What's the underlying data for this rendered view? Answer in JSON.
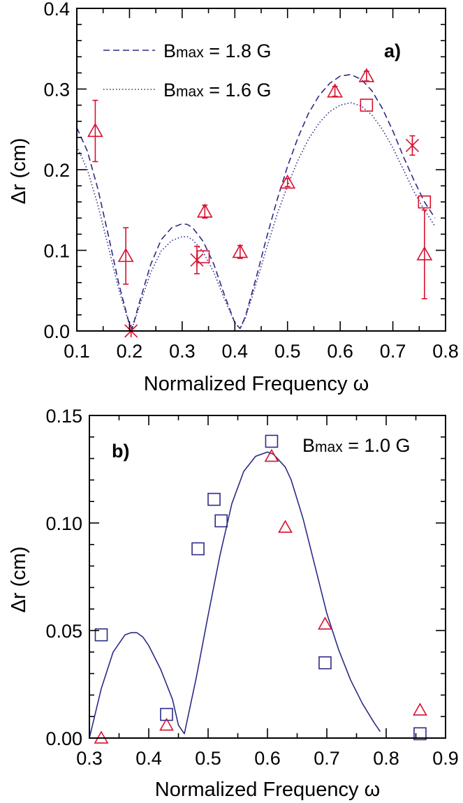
{
  "colors": {
    "model": "#2b2b86",
    "triangles": "#d8102f",
    "squares_a": "#d8102f",
    "squares_b": "#2b2b86",
    "axes": "#000000"
  },
  "chart_data": [
    {
      "type": "line",
      "panel_label": "a)",
      "xlabel": "Normalized Frequency ω",
      "ylabel": "Δr (cm)",
      "xlim": [
        0.1,
        0.8
      ],
      "ylim": [
        0.0,
        0.4
      ],
      "x_ticks": [
        0.1,
        0.2,
        0.3,
        0.4,
        0.5,
        0.6,
        0.7,
        0.8
      ],
      "x_tick_labels": [
        "0.1",
        "0.2",
        "0.3",
        "0.4",
        "0.5",
        "0.6",
        "0.7",
        "0.8"
      ],
      "y_ticks": [
        0.0,
        0.1,
        0.2,
        0.3,
        0.4
      ],
      "y_tick_labels": [
        "0.0",
        "0.1",
        "0.2",
        "0.3",
        "0.4"
      ],
      "legend_position": "top-left",
      "series": [
        {
          "name": "Bmax = 1.8 G",
          "name_main": "B",
          "name_sub": "max",
          "name_rest": " = 1.8 G",
          "style": "dashed",
          "x": [
            0.1,
            0.12,
            0.14,
            0.16,
            0.18,
            0.2,
            0.205,
            0.22,
            0.24,
            0.26,
            0.28,
            0.3,
            0.31,
            0.32,
            0.34,
            0.36,
            0.38,
            0.4,
            0.41,
            0.42,
            0.44,
            0.46,
            0.48,
            0.5,
            0.52,
            0.54,
            0.56,
            0.58,
            0.6,
            0.62,
            0.64,
            0.66,
            0.68,
            0.7,
            0.72,
            0.74,
            0.76,
            0.78
          ],
          "y": [
            0.252,
            0.223,
            0.176,
            0.118,
            0.058,
            0.008,
            0.003,
            0.038,
            0.082,
            0.113,
            0.128,
            0.133,
            0.132,
            0.128,
            0.111,
            0.083,
            0.045,
            0.01,
            0.003,
            0.018,
            0.065,
            0.115,
            0.162,
            0.204,
            0.24,
            0.27,
            0.292,
            0.307,
            0.316,
            0.318,
            0.312,
            0.298,
            0.276,
            0.248,
            0.216,
            0.187,
            0.16,
            0.14
          ]
        },
        {
          "name": "Bmax = 1.6 G",
          "name_main": "B",
          "name_sub": "max",
          "name_rest": " = 1.6 G",
          "style": "dotted",
          "x": [
            0.1,
            0.12,
            0.14,
            0.16,
            0.18,
            0.2,
            0.205,
            0.22,
            0.24,
            0.26,
            0.28,
            0.3,
            0.31,
            0.32,
            0.34,
            0.36,
            0.38,
            0.4,
            0.41,
            0.42,
            0.44,
            0.46,
            0.48,
            0.5,
            0.52,
            0.54,
            0.56,
            0.58,
            0.6,
            0.62,
            0.64,
            0.66,
            0.68,
            0.7,
            0.72,
            0.74,
            0.76,
            0.78
          ],
          "y": [
            0.229,
            0.2,
            0.156,
            0.104,
            0.051,
            0.008,
            0.003,
            0.033,
            0.072,
            0.099,
            0.112,
            0.117,
            0.117,
            0.113,
            0.098,
            0.073,
            0.04,
            0.01,
            0.003,
            0.016,
            0.058,
            0.102,
            0.144,
            0.18,
            0.212,
            0.238,
            0.258,
            0.272,
            0.28,
            0.283,
            0.279,
            0.268,
            0.25,
            0.227,
            0.2,
            0.173,
            0.15,
            0.13
          ]
        }
      ],
      "points": [
        {
          "marker": "triangle",
          "x": 0.135,
          "y": 0.248,
          "err": 0.038
        },
        {
          "marker": "triangle",
          "x": 0.193,
          "y": 0.093,
          "err": 0.035
        },
        {
          "marker": "triangle",
          "x": 0.343,
          "y": 0.148,
          "err": 0.008
        },
        {
          "marker": "triangle",
          "x": 0.41,
          "y": 0.098,
          "err": 0.008
        },
        {
          "marker": "triangle",
          "x": 0.5,
          "y": 0.184,
          "err": 0.005
        },
        {
          "marker": "triangle",
          "x": 0.59,
          "y": 0.297,
          "err": 0.006
        },
        {
          "marker": "triangle",
          "x": 0.65,
          "y": 0.316,
          "err": 0.006
        },
        {
          "marker": "triangle",
          "x": 0.76,
          "y": 0.095,
          "err": 0.055
        },
        {
          "marker": "square",
          "x": 0.34,
          "y": 0.092,
          "err": 0.0
        },
        {
          "marker": "square",
          "x": 0.65,
          "y": 0.28,
          "err": 0.0
        },
        {
          "marker": "square",
          "x": 0.76,
          "y": 0.16,
          "err": 0.0
        },
        {
          "marker": "cross",
          "x": 0.203,
          "y": 0.0,
          "err": 0.0
        },
        {
          "marker": "cross",
          "x": 0.328,
          "y": 0.088,
          "err": 0.017
        },
        {
          "marker": "cross",
          "x": 0.737,
          "y": 0.23,
          "err": 0.012
        }
      ]
    },
    {
      "type": "line",
      "panel_label": "b)",
      "xlabel": "Normalized Frequency ω",
      "ylabel": "Δr (cm)",
      "xlim": [
        0.3,
        0.9
      ],
      "ylim": [
        0.0,
        0.15
      ],
      "x_ticks": [
        0.3,
        0.4,
        0.5,
        0.6,
        0.7,
        0.8,
        0.9
      ],
      "x_tick_labels": [
        "0.3",
        "0.4",
        "0.5",
        "0.6",
        "0.7",
        "0.8",
        "0.9"
      ],
      "y_ticks": [
        0.0,
        0.05,
        0.1,
        0.15
      ],
      "y_tick_labels": [
        "0.00",
        "0.05",
        "0.10",
        "0.15"
      ],
      "legend_position": "top-right",
      "series": [
        {
          "name": "Bmax = 1.0 G",
          "name_main": "B",
          "name_sub": "max",
          "name_rest": " = 1.0 G",
          "style": "solid",
          "x": [
            0.3,
            0.32,
            0.34,
            0.36,
            0.37,
            0.38,
            0.39,
            0.4,
            0.42,
            0.44,
            0.45,
            0.46,
            0.48,
            0.5,
            0.52,
            0.54,
            0.56,
            0.58,
            0.6,
            0.61,
            0.62,
            0.63,
            0.64,
            0.66,
            0.68,
            0.7,
            0.72,
            0.74,
            0.76,
            0.78,
            0.79
          ],
          "y": [
            0.0,
            0.023,
            0.04,
            0.048,
            0.049,
            0.049,
            0.047,
            0.043,
            0.032,
            0.018,
            0.006,
            0.002,
            0.028,
            0.057,
            0.085,
            0.109,
            0.124,
            0.131,
            0.133,
            0.132,
            0.129,
            0.126,
            0.12,
            0.102,
            0.08,
            0.058,
            0.041,
            0.027,
            0.016,
            0.007,
            0.003
          ]
        }
      ],
      "points": [
        {
          "marker": "square",
          "x": 0.32,
          "y": 0.048,
          "err": 0.0
        },
        {
          "marker": "square",
          "x": 0.43,
          "y": 0.011,
          "err": 0.0
        },
        {
          "marker": "square",
          "x": 0.483,
          "y": 0.088,
          "err": 0.0
        },
        {
          "marker": "square",
          "x": 0.51,
          "y": 0.111,
          "err": 0.0
        },
        {
          "marker": "square",
          "x": 0.522,
          "y": 0.101,
          "err": 0.0
        },
        {
          "marker": "square",
          "x": 0.607,
          "y": 0.138,
          "err": 0.0
        },
        {
          "marker": "square",
          "x": 0.697,
          "y": 0.035,
          "err": 0.0
        },
        {
          "marker": "square",
          "x": 0.857,
          "y": 0.002,
          "err": 0.0
        },
        {
          "marker": "triangle",
          "x": 0.32,
          "y": 0.0,
          "err": 0.0
        },
        {
          "marker": "triangle",
          "x": 0.43,
          "y": 0.006,
          "err": 0.0
        },
        {
          "marker": "triangle",
          "x": 0.607,
          "y": 0.131,
          "err": 0.0
        },
        {
          "marker": "triangle",
          "x": 0.63,
          "y": 0.098,
          "err": 0.0
        },
        {
          "marker": "triangle",
          "x": 0.697,
          "y": 0.053,
          "err": 0.0
        },
        {
          "marker": "triangle",
          "x": 0.857,
          "y": 0.013,
          "err": 0.0
        }
      ]
    }
  ]
}
